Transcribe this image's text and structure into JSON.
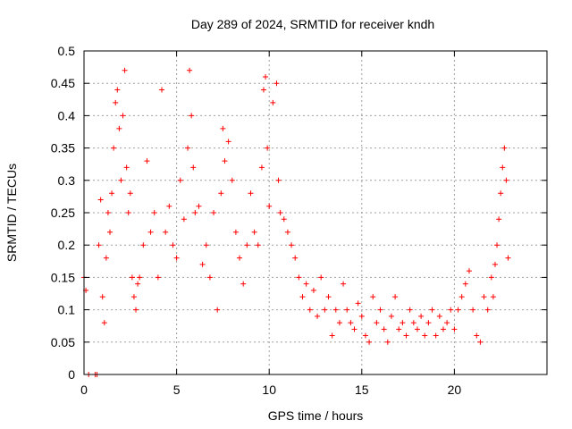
{
  "chart_data": {
    "type": "scatter",
    "title": "Day 289 of 2024, SRMTID for receiver kndh",
    "xlabel": "GPS time / hours",
    "ylabel": "SRMTID / TECUs",
    "xlim": [
      0,
      25
    ],
    "ylim": [
      0,
      0.5
    ],
    "xticks": [
      0,
      5,
      10,
      15,
      20
    ],
    "yticks": [
      0,
      0.05,
      0.1,
      0.15,
      0.2,
      0.25,
      0.3,
      0.35,
      0.4,
      0.45,
      0.5
    ],
    "grid": true,
    "marker": "+",
    "color": "#ff0000",
    "series": [
      {
        "name": "SRMTID",
        "x": [
          0.0,
          0.1,
          0.25,
          0.6,
          0.7,
          0.8,
          0.9,
          1.0,
          1.1,
          1.2,
          1.3,
          1.4,
          1.5,
          1.6,
          1.7,
          1.8,
          1.9,
          2.0,
          2.1,
          2.2,
          2.3,
          2.4,
          2.5,
          2.6,
          2.7,
          2.8,
          2.9,
          3.0,
          3.2,
          3.4,
          3.6,
          3.8,
          4.0,
          4.2,
          4.4,
          4.6,
          4.8,
          5.0,
          5.2,
          5.4,
          5.6,
          5.7,
          5.8,
          5.9,
          6.0,
          6.2,
          6.4,
          6.6,
          6.8,
          7.0,
          7.2,
          7.4,
          7.5,
          7.6,
          7.8,
          8.0,
          8.2,
          8.4,
          8.6,
          8.8,
          9.0,
          9.2,
          9.4,
          9.6,
          9.7,
          9.8,
          9.9,
          10.0,
          10.2,
          10.4,
          10.5,
          10.6,
          10.8,
          11.0,
          11.2,
          11.4,
          11.6,
          11.8,
          12.0,
          12.2,
          12.4,
          12.6,
          12.8,
          13.0,
          13.2,
          13.4,
          13.6,
          13.8,
          14.0,
          14.2,
          14.4,
          14.6,
          14.8,
          15.0,
          15.2,
          15.4,
          15.6,
          15.8,
          16.0,
          16.2,
          16.4,
          16.6,
          16.8,
          17.0,
          17.2,
          17.4,
          17.6,
          17.8,
          18.0,
          18.2,
          18.4,
          18.6,
          18.8,
          19.0,
          19.2,
          19.4,
          19.6,
          19.8,
          20.0,
          20.2,
          20.4,
          20.6,
          20.8,
          21.0,
          21.2,
          21.4,
          21.6,
          21.8,
          22.0,
          22.1,
          22.2,
          22.3,
          22.4,
          22.5,
          22.6,
          22.7,
          22.8,
          22.9
        ],
        "y": [
          0.15,
          0.13,
          0.0,
          0.0,
          0.0,
          0.2,
          0.27,
          0.12,
          0.08,
          0.18,
          0.25,
          0.22,
          0.28,
          0.35,
          0.42,
          0.44,
          0.38,
          0.3,
          0.4,
          0.47,
          0.32,
          0.25,
          0.28,
          0.15,
          0.12,
          0.1,
          0.14,
          0.15,
          0.2,
          0.33,
          0.22,
          0.25,
          0.15,
          0.44,
          0.22,
          0.26,
          0.2,
          0.18,
          0.3,
          0.24,
          0.35,
          0.47,
          0.4,
          0.32,
          0.25,
          0.26,
          0.17,
          0.2,
          0.15,
          0.25,
          0.1,
          0.28,
          0.38,
          0.33,
          0.36,
          0.3,
          0.22,
          0.18,
          0.14,
          0.2,
          0.28,
          0.22,
          0.2,
          0.32,
          0.44,
          0.46,
          0.35,
          0.26,
          0.42,
          0.45,
          0.3,
          0.25,
          0.24,
          0.22,
          0.2,
          0.18,
          0.15,
          0.12,
          0.14,
          0.1,
          0.13,
          0.09,
          0.15,
          0.1,
          0.12,
          0.06,
          0.1,
          0.08,
          0.14,
          0.1,
          0.08,
          0.07,
          0.11,
          0.09,
          0.06,
          0.05,
          0.12,
          0.08,
          0.1,
          0.07,
          0.05,
          0.09,
          0.12,
          0.07,
          0.08,
          0.06,
          0.1,
          0.08,
          0.07,
          0.09,
          0.06,
          0.08,
          0.1,
          0.06,
          0.09,
          0.07,
          0.08,
          0.1,
          0.07,
          0.1,
          0.12,
          0.14,
          0.16,
          0.1,
          0.06,
          0.05,
          0.12,
          0.1,
          0.15,
          0.12,
          0.17,
          0.2,
          0.24,
          0.28,
          0.32,
          0.35,
          0.3,
          0.18
        ]
      }
    ]
  }
}
